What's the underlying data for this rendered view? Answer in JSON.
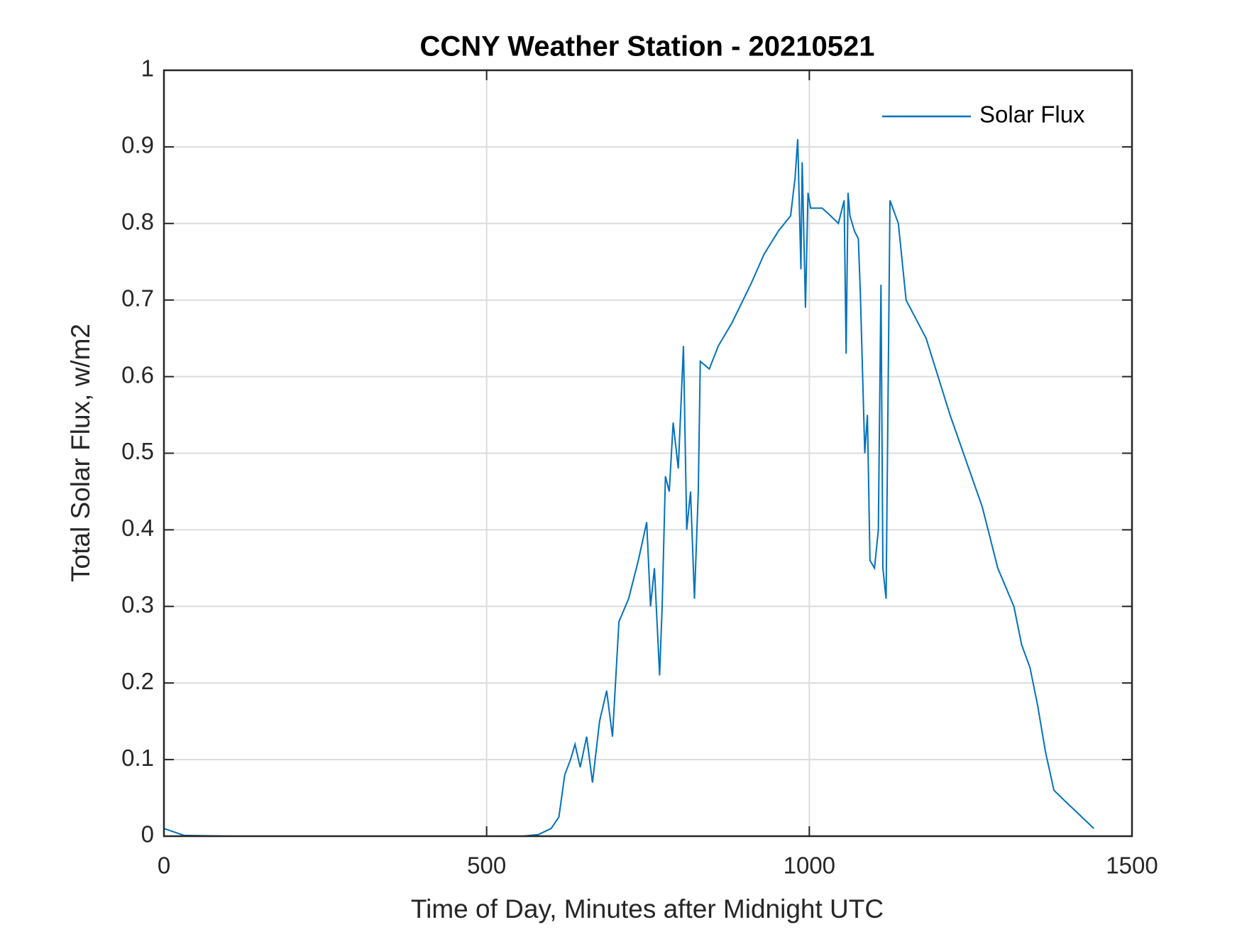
{
  "chart_data": {
    "type": "line",
    "title": "CCNY Weather Station - 20210521",
    "x_label": "Time of Day, Minutes after Midnight UTC",
    "y_label": "Total Solar Flux, w/m2",
    "xlim": [
      0,
      1500
    ],
    "xticks": [
      0,
      500,
      1000,
      1500
    ],
    "ylim": [
      0,
      1
    ],
    "yticks": [
      0,
      0.1,
      0.2,
      0.3,
      0.4,
      0.5,
      0.6,
      0.7,
      0.8,
      0.9,
      1
    ],
    "grid": true,
    "legend": "upper right",
    "series": [
      {
        "name": "Solar Flux",
        "color": "#0072bd",
        "x": [
          0,
          31,
          100,
          300,
          500,
          556,
          580,
          600,
          612,
          621,
          630,
          637,
          645,
          655,
          664,
          675,
          686,
          695,
          705,
          720,
          735,
          748,
          754,
          760,
          768,
          772,
          777,
          783,
          789,
          797,
          805,
          810,
          816,
          822,
          828,
          831,
          845,
          859,
          880,
          909,
          930,
          952,
          971,
          978,
          982,
          987,
          989,
          994,
          998,
          1002,
          1020,
          1033,
          1045,
          1054,
          1057,
          1060,
          1063,
          1070,
          1076,
          1079,
          1086,
          1090,
          1094,
          1101,
          1107,
          1111,
          1114,
          1119,
          1125,
          1138,
          1150,
          1181,
          1218,
          1243,
          1268,
          1292,
          1317,
          1329,
          1342,
          1354,
          1366,
          1379,
          1391,
          1416,
          1441
        ],
        "values": [
          0.01,
          0.001,
          0,
          0,
          0,
          0,
          0.002,
          0.01,
          0.025,
          0.08,
          0.1,
          0.12,
          0.09,
          0.13,
          0.07,
          0.15,
          0.19,
          0.13,
          0.28,
          0.31,
          0.36,
          0.41,
          0.3,
          0.35,
          0.21,
          0.3,
          0.47,
          0.45,
          0.54,
          0.48,
          0.64,
          0.4,
          0.45,
          0.31,
          0.45,
          0.62,
          0.61,
          0.64,
          0.67,
          0.72,
          0.76,
          0.79,
          0.81,
          0.86,
          0.91,
          0.74,
          0.88,
          0.69,
          0.84,
          0.82,
          0.82,
          0.81,
          0.8,
          0.83,
          0.63,
          0.84,
          0.81,
          0.79,
          0.78,
          0.71,
          0.5,
          0.55,
          0.36,
          0.35,
          0.4,
          0.72,
          0.35,
          0.31,
          0.83,
          0.8,
          0.7,
          0.65,
          0.55,
          0.49,
          0.43,
          0.35,
          0.3,
          0.25,
          0.22,
          0.17,
          0.11,
          0.06,
          0.05,
          0.03,
          0.01
        ]
      }
    ]
  }
}
